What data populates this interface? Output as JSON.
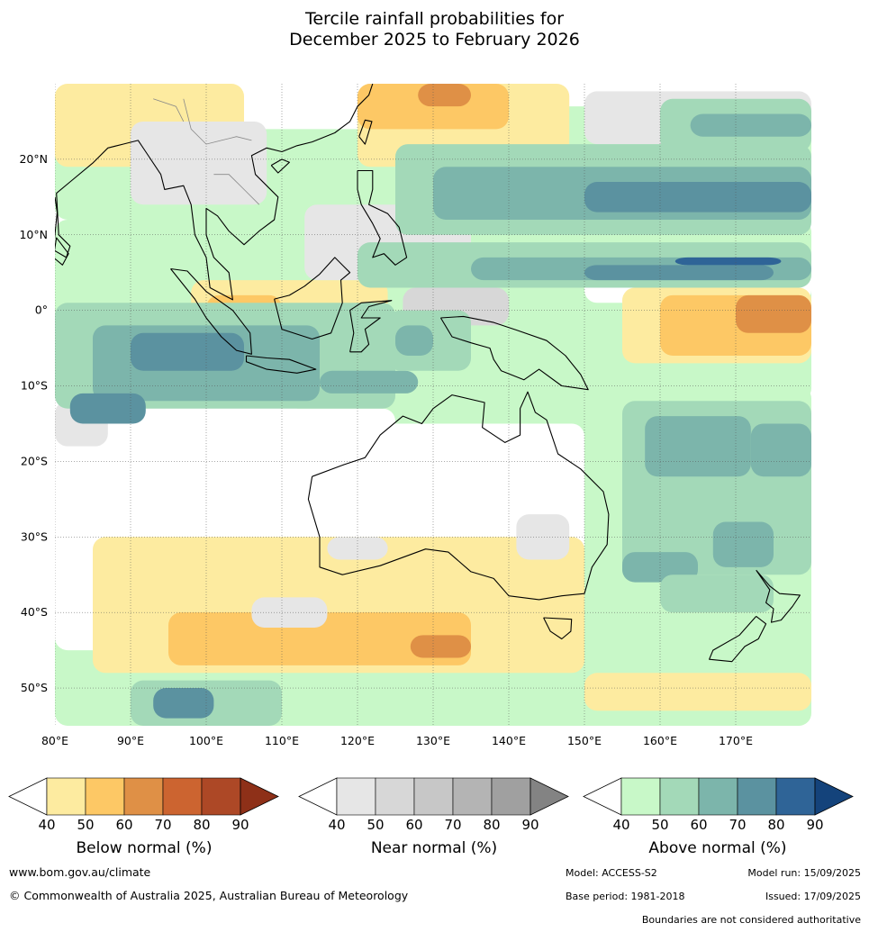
{
  "title": {
    "line1": "Tercile rainfall probabilities for",
    "line2": "December 2025 to February 2026"
  },
  "map": {
    "lon_range": [
      80,
      180
    ],
    "lat_range": [
      -55,
      30
    ],
    "lon_ticks": [
      "80°E",
      "90°E",
      "100°E",
      "110°E",
      "120°E",
      "130°E",
      "140°E",
      "150°E",
      "160°E",
      "170°E"
    ],
    "lat_ticks": [
      "20°N",
      "10°N",
      "0°",
      "10°S",
      "20°S",
      "30°S",
      "40°S",
      "50°S"
    ],
    "gridlines": true
  },
  "colorbars": [
    {
      "label": "Below normal (%)",
      "ticks": [
        "40",
        "50",
        "60",
        "70",
        "80",
        "90"
      ],
      "colors": [
        "#fdeba0",
        "#fdc865",
        "#df9046",
        "#cc6430",
        "#ad4826",
        "#8e3018"
      ]
    },
    {
      "label": "Near normal (%)",
      "ticks": [
        "40",
        "50",
        "60",
        "70",
        "80",
        "90"
      ],
      "colors": [
        "#e6e6e6",
        "#d7d7d7",
        "#c7c7c7",
        "#b4b4b4",
        "#a0a0a0",
        "#838383"
      ]
    },
    {
      "label": "Above normal (%)",
      "ticks": [
        "40",
        "50",
        "60",
        "70",
        "80",
        "90"
      ],
      "colors": [
        "#c8f8c8",
        "#a3d9b8",
        "#7cb5ab",
        "#5b92a0",
        "#2f6497",
        "#14437b"
      ]
    }
  ],
  "footer": {
    "website": "www.bom.gov.au/climate",
    "copyright": "© Commonwealth of Australia 2025, Australian Bureau of Meteorology",
    "model": "Model: ACCESS-S2",
    "model_run": "Model run: 15/09/2025",
    "base_period": "Base period: 1981-2018",
    "issued": "Issued: 17/09/2025",
    "disclaimer": "Boundaries are not considered authoritative"
  }
}
